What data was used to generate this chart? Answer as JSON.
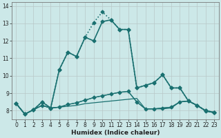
{
  "title": "",
  "xlabel": "Humidex (Indice chaleur)",
  "background_color": "#cce8e8",
  "grid_color": "#aacccc",
  "line_color": "#1a7070",
  "xlim": [
    -0.5,
    23.5
  ],
  "ylim": [
    7.5,
    14.2
  ],
  "yticks": [
    8,
    9,
    10,
    11,
    12,
    13,
    14
  ],
  "xticks": [
    0,
    1,
    2,
    3,
    4,
    5,
    6,
    7,
    8,
    9,
    10,
    11,
    12,
    13,
    14,
    15,
    16,
    17,
    18,
    19,
    20,
    21,
    22,
    23
  ],
  "series": [
    {
      "x": [
        0,
        1,
        2,
        3,
        4,
        5,
        6,
        7,
        8,
        9,
        10,
        11,
        12,
        13,
        14,
        15,
        16,
        17,
        18,
        19,
        20,
        21,
        22,
        23
      ],
      "y": [
        8.4,
        7.8,
        8.05,
        8.5,
        8.15,
        10.35,
        11.35,
        11.1,
        12.2,
        13.05,
        13.65,
        13.2,
        12.65,
        12.65,
        9.3,
        9.45,
        9.6,
        10.05,
        9.3,
        9.3,
        8.55,
        8.3,
        8.0,
        7.9
      ],
      "style": ":",
      "marker": "D",
      "markersize": 2.5,
      "linewidth": 1.2,
      "zorder": 4
    },
    {
      "x": [
        0,
        1,
        2,
        3,
        4,
        5,
        6,
        7,
        8,
        9,
        10,
        11,
        12,
        13,
        14,
        15,
        16,
        17,
        18,
        19,
        20,
        21,
        22,
        23
      ],
      "y": [
        8.4,
        7.8,
        8.05,
        8.5,
        8.15,
        10.35,
        11.35,
        11.1,
        12.2,
        12.0,
        13.1,
        13.2,
        12.65,
        12.65,
        9.3,
        9.45,
        9.6,
        10.05,
        9.3,
        9.3,
        8.55,
        8.3,
        8.0,
        7.9
      ],
      "style": "-",
      "marker": "D",
      "markersize": 2.5,
      "linewidth": 1.2,
      "zorder": 3
    },
    {
      "x": [
        0,
        1,
        2,
        3,
        4,
        5,
        6,
        7,
        8,
        9,
        10,
        11,
        12,
        13,
        14,
        15,
        16,
        17,
        18,
        19,
        20,
        21,
        22,
        23
      ],
      "y": [
        8.4,
        7.8,
        8.05,
        8.3,
        8.15,
        8.2,
        8.25,
        8.3,
        8.4,
        8.45,
        8.5,
        8.55,
        8.6,
        8.65,
        8.7,
        8.1,
        8.1,
        8.1,
        8.15,
        8.5,
        8.55,
        8.3,
        7.98,
        7.88
      ],
      "style": "-",
      "marker": null,
      "linewidth": 0.9,
      "zorder": 2
    },
    {
      "x": [
        0,
        1,
        2,
        3,
        4,
        5,
        6,
        7,
        8,
        9,
        10,
        11,
        12,
        13,
        14,
        15,
        16,
        17,
        18,
        19,
        20,
        21,
        22,
        23
      ],
      "y": [
        8.4,
        7.8,
        8.05,
        8.3,
        8.15,
        8.2,
        8.35,
        8.45,
        8.6,
        8.75,
        8.85,
        8.95,
        9.05,
        9.1,
        8.5,
        8.1,
        8.1,
        8.15,
        8.2,
        8.5,
        8.55,
        8.3,
        7.98,
        7.88
      ],
      "style": "-",
      "marker": null,
      "linewidth": 0.9,
      "zorder": 2
    },
    {
      "x": [
        0,
        1,
        2,
        3,
        4,
        5,
        6,
        7,
        8,
        9,
        10,
        11,
        12,
        13,
        14,
        15,
        16,
        17,
        18,
        19,
        20,
        21,
        22,
        23
      ],
      "y": [
        8.4,
        7.8,
        8.05,
        8.3,
        8.15,
        8.2,
        8.35,
        8.45,
        8.6,
        8.75,
        8.85,
        8.95,
        9.05,
        9.1,
        8.5,
        8.1,
        8.1,
        8.15,
        8.2,
        8.5,
        8.55,
        8.3,
        7.98,
        7.88
      ],
      "style": "-",
      "marker": "D",
      "markersize": 2.5,
      "linewidth": 0.9,
      "zorder": 2
    }
  ]
}
